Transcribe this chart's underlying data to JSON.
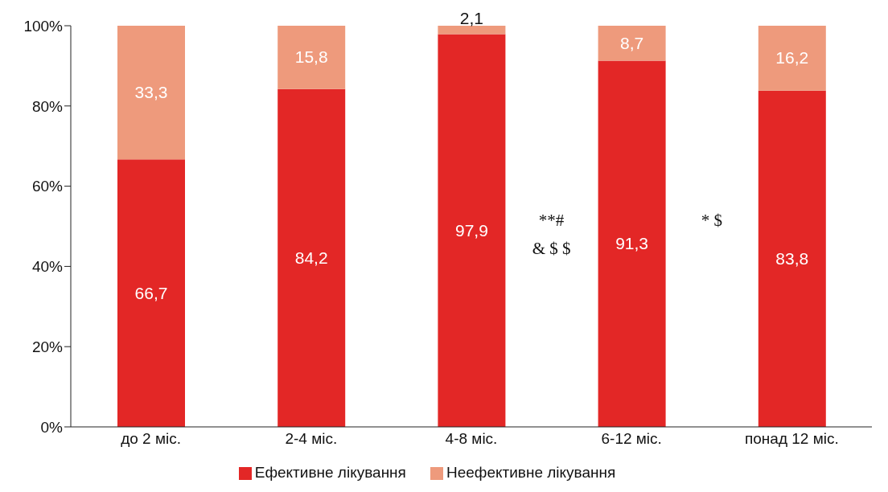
{
  "chart_data": {
    "type": "bar",
    "stacked": true,
    "categories": [
      "до 2 міс.",
      "2-4 міс.",
      "4-8 міс.",
      "6-12 міс.",
      "понад 12 міс."
    ],
    "series": [
      {
        "name": "Ефективне лікування",
        "color": "#e32726",
        "values": [
          66.7,
          84.2,
          97.9,
          91.3,
          83.8
        ],
        "value_labels": [
          "66,7",
          "84,2",
          "97,9",
          "91,3",
          "83,8"
        ]
      },
      {
        "name": "Неефективне лікування",
        "color": "#ee9a7c",
        "values": [
          33.3,
          15.8,
          2.1,
          8.7,
          16.2
        ],
        "value_labels": [
          "33,3",
          "15,8",
          "2,1",
          "8,7",
          "16,2"
        ]
      }
    ],
    "ylim": [
      0,
      100
    ],
    "yticks": [
      {
        "value": 0,
        "label": "0%"
      },
      {
        "value": 20,
        "label": "20%"
      },
      {
        "value": 40,
        "label": "40%"
      },
      {
        "value": 60,
        "label": "60%"
      },
      {
        "value": 80,
        "label": "80%"
      },
      {
        "value": 100,
        "label": "100%"
      }
    ],
    "grid": false,
    "legend": "bottom",
    "annotations": [
      "**#",
      "& $ $",
      "* $"
    ]
  }
}
